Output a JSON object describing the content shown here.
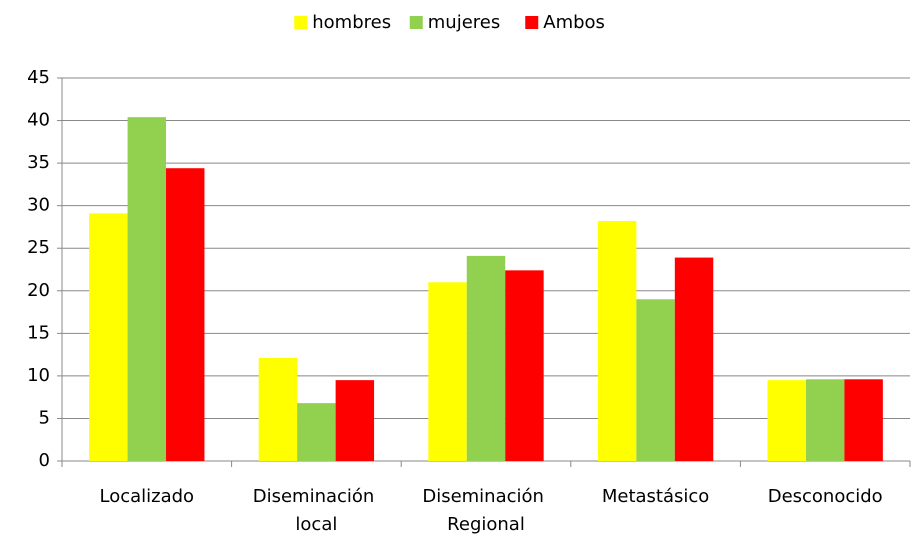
{
  "chart_data": {
    "type": "bar",
    "categories": [
      "Localizado",
      "Diseminación local",
      "Diseminación Regional",
      "Metastásico",
      "Desconocido"
    ],
    "series": [
      {
        "name": "hombres",
        "color": "#ffff00",
        "values": [
          29.1,
          12.1,
          21.0,
          28.2,
          9.5
        ]
      },
      {
        "name": "mujeres",
        "color": "#92d050",
        "values": [
          40.4,
          6.8,
          24.1,
          19.0,
          9.6
        ]
      },
      {
        "name": "Ambos",
        "color": "#ff0000",
        "values": [
          34.4,
          9.5,
          22.4,
          23.9,
          9.6
        ]
      }
    ],
    "ylim": [
      0,
      45
    ],
    "yticks": [
      0,
      5,
      10,
      15,
      20,
      25,
      30,
      35,
      40,
      45
    ],
    "grid": true,
    "legend": "top"
  }
}
